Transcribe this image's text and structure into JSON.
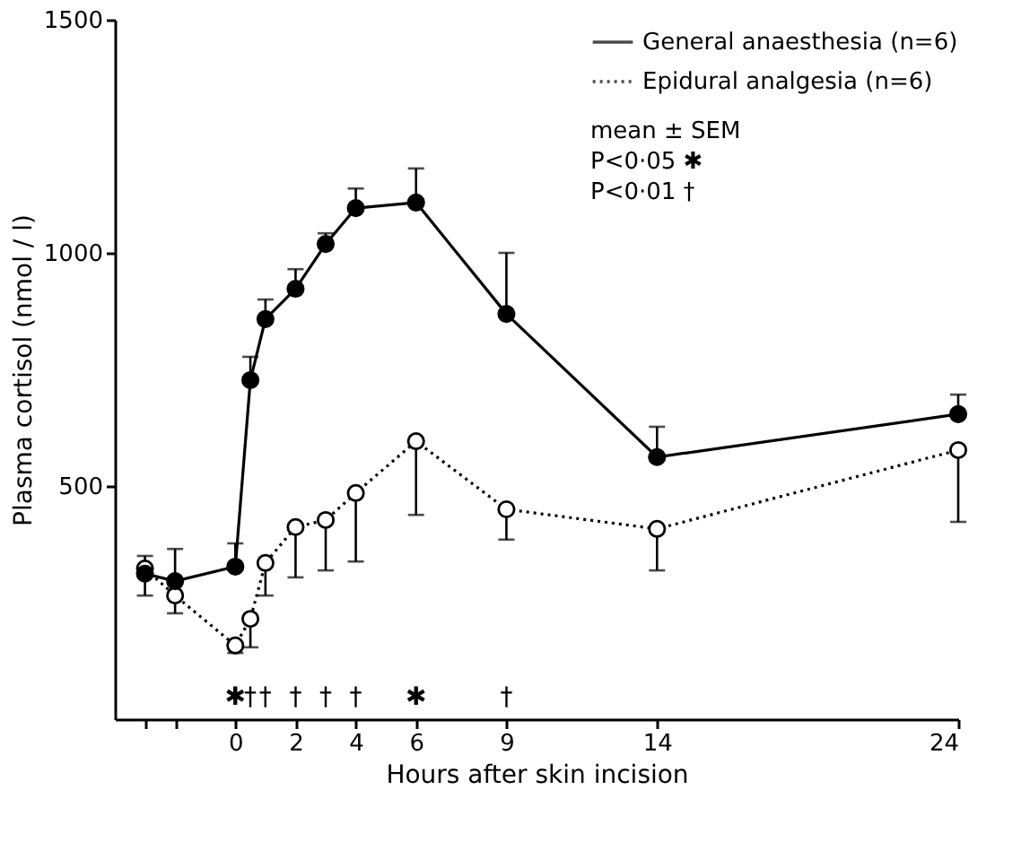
{
  "chart_data": {
    "type": "line",
    "xlabel": "Hours  after skin incision",
    "ylabel": "Plasma cortisol  (nmol / l)",
    "x": [
      -3,
      -2,
      0,
      0.5,
      1,
      2,
      3,
      4,
      6,
      9,
      14,
      24
    ],
    "series": [
      {
        "name": "General anaesthesia (n=6)",
        "color": "#000000",
        "line_style": "solid",
        "values": [
          312,
          296,
          327,
          727,
          858,
          923,
          1019,
          1096,
          1108,
          869,
          562,
          654
        ],
        "errors": [
          [
            312,
            350
          ],
          [
            296,
            365
          ],
          [
            327,
            377
          ],
          [
            727,
            777
          ],
          [
            858,
            900
          ],
          [
            923,
            965
          ],
          [
            1019,
            1042
          ],
          [
            1096,
            1138
          ],
          [
            1108,
            1181
          ],
          [
            869,
            1000
          ],
          [
            562,
            627
          ],
          [
            654,
            696
          ]
        ]
      },
      {
        "name": "Epidural analgesia (n=6)",
        "color": "#000000",
        "line_style": "dotted",
        "values": [
          323,
          265,
          158,
          215,
          335,
          412,
          427,
          485,
          596,
          450,
          408,
          577
        ],
        "errors": [
          [
            265,
            323
          ],
          [
            227,
            265
          ],
          [
            142,
            158
          ],
          [
            154,
            215
          ],
          [
            265,
            335
          ],
          [
            304,
            412
          ],
          [
            319,
            427
          ],
          [
            338,
            485
          ],
          [
            438,
            596
          ],
          [
            385,
            450
          ],
          [
            319,
            408
          ],
          [
            423,
            577
          ]
        ]
      }
    ],
    "xlim": [
      -4,
      24
    ],
    "ylim": [
      0,
      1500
    ],
    "xticks": [
      {
        "value": -3,
        "label": null
      },
      {
        "value": -2,
        "label": null
      },
      0,
      2,
      4,
      6,
      9,
      14,
      24
    ],
    "yticks": [
      500,
      1000,
      1500
    ],
    "marker": "circle",
    "grid": false,
    "legend": "top right",
    "annotations": [
      "mean ± SEM",
      "P<0·05  ✱",
      "P<0·01   †",
      "✱",
      "†",
      "†",
      "†",
      "†",
      "†",
      "✱",
      "†"
    ]
  }
}
